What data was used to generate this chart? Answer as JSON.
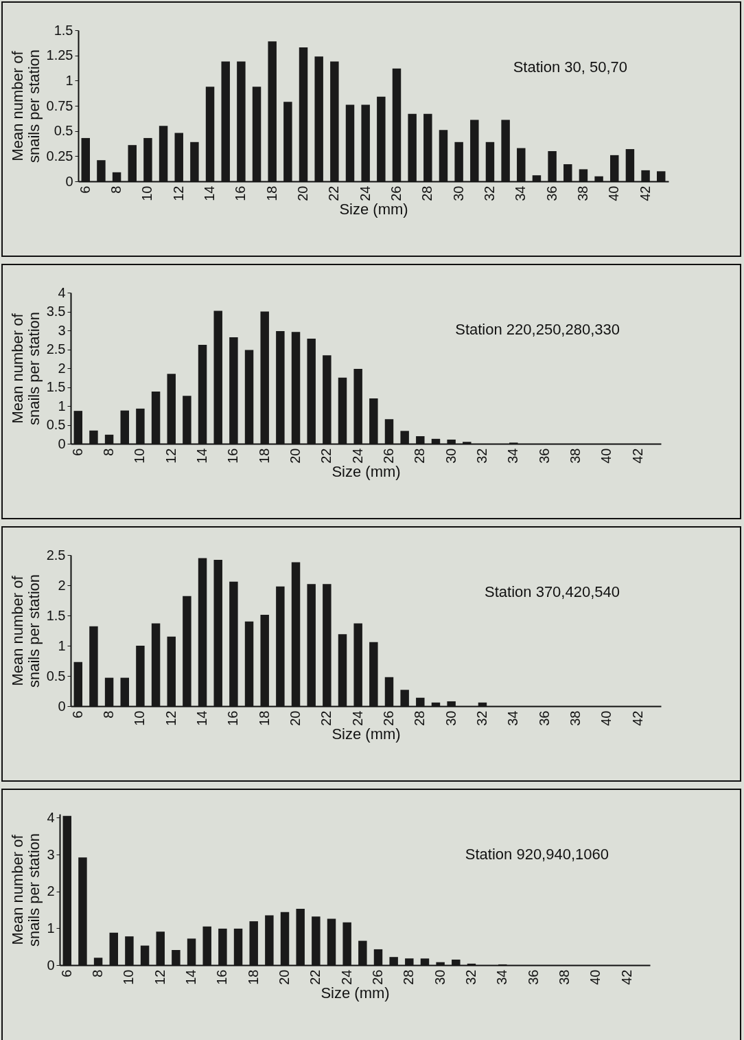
{
  "chart_data": [
    {
      "type": "bar",
      "title": "Station 30, 50,70",
      "xlabel": "Size (mm)",
      "ylabel": "Mean number of snails per station",
      "categories": [
        "6",
        null,
        "8",
        null,
        "10",
        null,
        "12",
        null,
        "14",
        null,
        "16",
        null,
        "18",
        null,
        "20",
        null,
        "22",
        null,
        "24",
        null,
        "26",
        null,
        "28",
        null,
        "30",
        null,
        "32",
        null,
        "34",
        null,
        "36",
        null,
        "38",
        null,
        "40",
        null,
        "42",
        null
      ],
      "color": "#1a1a1a",
      "ylim": [
        0,
        1.5
      ],
      "yticks": [
        0,
        0.25,
        0.5,
        0.75,
        1,
        1.25,
        1.5
      ],
      "values": [
        0.43,
        0.21,
        0.09,
        0.36,
        0.43,
        0.55,
        0.48,
        0.39,
        0.94,
        1.19,
        1.19,
        0.94,
        1.39,
        0.79,
        1.33,
        1.24,
        1.19,
        0.76,
        0.76,
        0.84,
        1.12,
        0.67,
        0.67,
        0.51,
        0.39,
        0.61,
        0.39,
        0.61,
        0.33,
        0.06,
        0.3,
        0.17,
        0.12,
        0.05,
        0.26,
        0.32,
        0.11,
        0.1
      ]
    },
    {
      "type": "bar",
      "title": "Station 220,250,280,330",
      "xlabel": "Size (mm)",
      "ylabel": "Mean number of snails per station",
      "categories": [
        "6",
        null,
        "8",
        null,
        "10",
        null,
        "12",
        null,
        "14",
        null,
        "16",
        null,
        "18",
        null,
        "20",
        null,
        "22",
        null,
        "24",
        null,
        "26",
        null,
        "28",
        null,
        "30",
        null,
        "32",
        null,
        "34",
        null,
        "36",
        null,
        "38",
        null,
        "40",
        null,
        "42",
        null
      ],
      "color": "#1a1a1a",
      "ylim": [
        0,
        4
      ],
      "yticks": [
        0,
        0.5,
        1,
        1.5,
        2,
        2.5,
        3,
        3.5,
        4
      ],
      "values": [
        0.87,
        0.35,
        0.24,
        0.88,
        0.93,
        1.38,
        1.85,
        1.27,
        2.62,
        3.52,
        2.82,
        2.48,
        3.5,
        2.98,
        2.96,
        2.78,
        2.34,
        1.75,
        1.98,
        1.2,
        0.65,
        0.34,
        0.2,
        0.13,
        0.11,
        0.05,
        0,
        0,
        0.03,
        0,
        0,
        0,
        0,
        0,
        0,
        0,
        0,
        0
      ]
    },
    {
      "type": "bar",
      "title": "Station 370,420,540",
      "xlabel": "Size (mm)",
      "ylabel": "Mean number of snails per station",
      "categories": [
        "6",
        null,
        "8",
        null,
        "10",
        null,
        "12",
        null,
        "14",
        null,
        "16",
        null,
        "18",
        null,
        "20",
        null,
        "22",
        null,
        "24",
        null,
        "26",
        null,
        "28",
        null,
        "30",
        null,
        "32",
        null,
        "34",
        null,
        "36",
        null,
        "38",
        null,
        "40",
        null,
        "42",
        null
      ],
      "color": "#1a1a1a",
      "ylim": [
        0,
        2.5
      ],
      "yticks": [
        0,
        0.5,
        1,
        1.5,
        2,
        2.5
      ],
      "values": [
        0.73,
        1.32,
        0.47,
        0.47,
        1.0,
        1.37,
        1.15,
        1.82,
        2.45,
        2.42,
        2.06,
        1.4,
        1.51,
        1.98,
        2.38,
        2.02,
        2.02,
        1.19,
        1.37,
        1.06,
        0.48,
        0.27,
        0.14,
        0.06,
        0.08,
        0,
        0.06,
        0,
        0,
        0,
        0,
        0,
        0,
        0,
        0,
        0,
        0,
        0
      ]
    },
    {
      "type": "bar",
      "title": "Station 920,940,1060",
      "xlabel": "Size (mm)",
      "ylabel": "Mean number of snails per station",
      "categories": [
        "6",
        null,
        "8",
        null,
        "10",
        null,
        "12",
        null,
        "14",
        null,
        "16",
        null,
        "18",
        null,
        "20",
        null,
        "22",
        null,
        "24",
        null,
        "26",
        null,
        "28",
        null,
        "30",
        null,
        "32",
        null,
        "34",
        null,
        "36",
        null,
        "38",
        null,
        "40",
        null,
        "42",
        null
      ],
      "color": "#1a1a1a",
      "ylim": [
        0,
        4.1
      ],
      "yticks": [
        0,
        1,
        2,
        3,
        4
      ],
      "values": [
        4.05,
        2.92,
        0.2,
        0.88,
        0.78,
        0.53,
        0.91,
        0.41,
        0.72,
        1.05,
        0.99,
        0.99,
        1.19,
        1.35,
        1.44,
        1.53,
        1.32,
        1.26,
        1.16,
        0.66,
        0.43,
        0.22,
        0.18,
        0.18,
        0.08,
        0.15,
        0.04,
        0,
        0.02,
        0,
        0,
        0,
        0,
        0,
        0,
        0,
        0,
        0
      ]
    }
  ]
}
